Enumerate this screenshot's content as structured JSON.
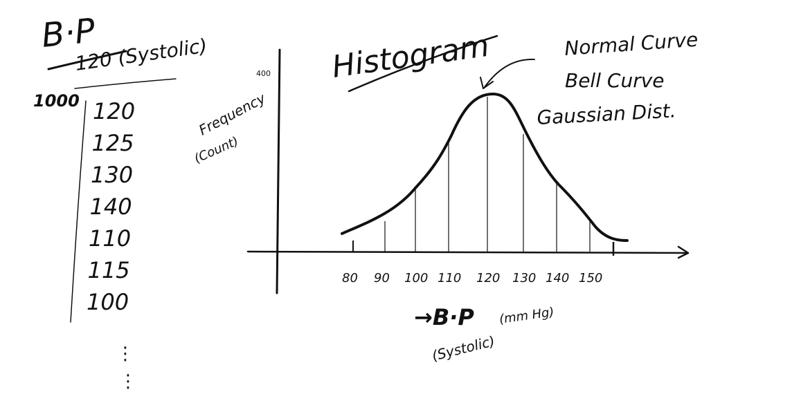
{
  "left_notes": {
    "title": "B·P",
    "subtitle": "120 (Systolic)",
    "sample_size": "1000",
    "readings": [
      "120",
      "125",
      "130",
      "140",
      "110",
      "115",
      "100"
    ],
    "continuation": "⋮"
  },
  "histogram": {
    "title": "Histogram",
    "y_axis_label_line1": "Frequency",
    "y_axis_label_line2": "(Count)",
    "y_top_tick": "400",
    "x_ticks": [
      "80",
      "90",
      "100",
      "110",
      "120",
      "130",
      "140",
      "150"
    ],
    "x_axis_label_main": "→B·P",
    "x_axis_label_unit": "(mm Hg)",
    "x_axis_label_sub": "(Systolic)"
  },
  "curve_annotation": {
    "line1": "Normal Curve",
    "line2": "Bell Curve",
    "line3": "Gaussian Dist."
  },
  "colors": {
    "ink": "#111111",
    "background": "#ffffff"
  }
}
